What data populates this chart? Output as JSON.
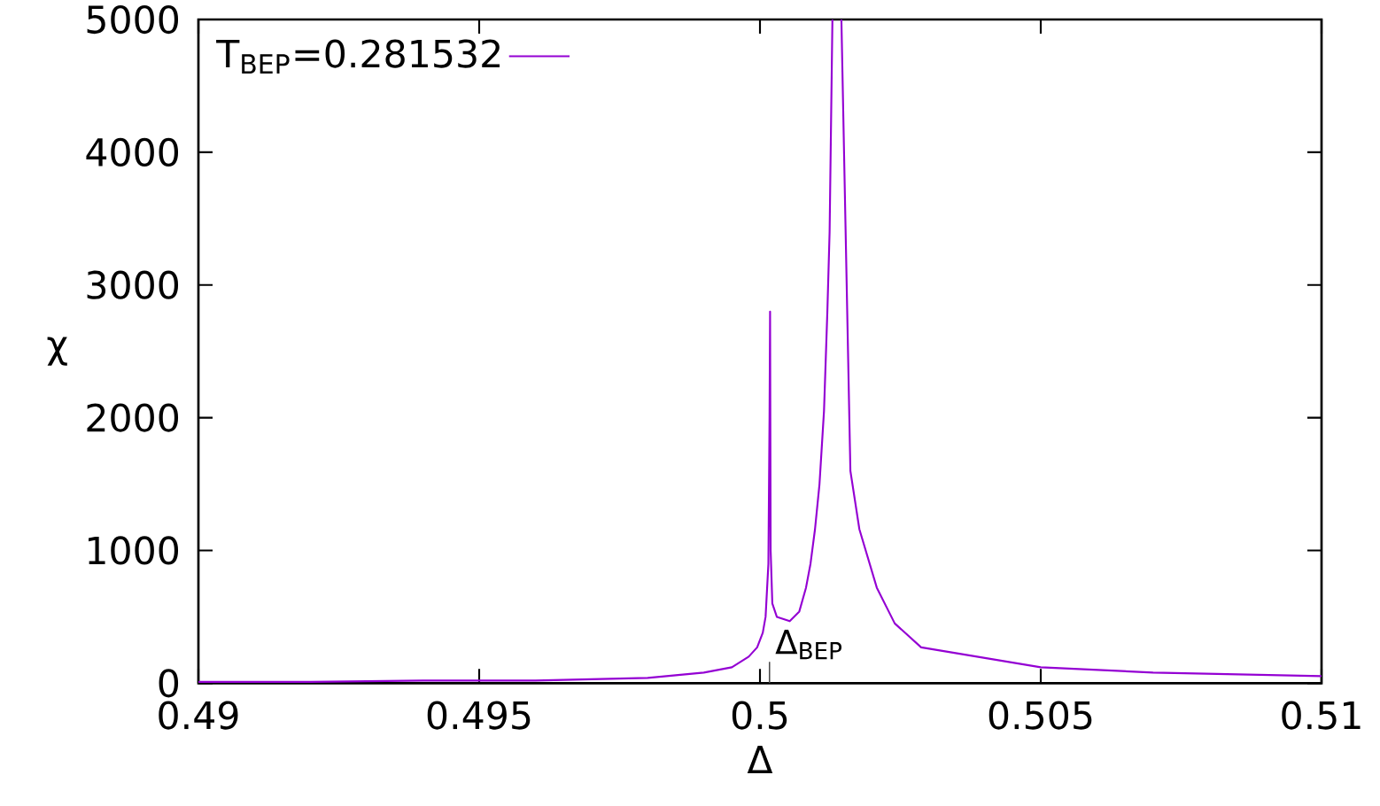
{
  "chart_data": {
    "type": "line",
    "xlabel": "Δ",
    "ylabel": "χ",
    "xlim": [
      0.49,
      0.51
    ],
    "ylim": [
      0,
      5000
    ],
    "xticks": [
      0.49,
      0.495,
      0.5,
      0.505,
      0.51
    ],
    "yticks": [
      0,
      1000,
      2000,
      3000,
      4000,
      5000
    ],
    "legend": "top left",
    "grid": false,
    "marker": "none",
    "line_style": "solid",
    "annotations": [
      "Δ$_{BEP}$"
    ],
    "series": [
      {
        "name": "T$_{BEP}$=0.281532",
        "color": "#9400d3",
        "x": [
          0.49,
          0.492,
          0.494,
          0.496,
          0.497,
          0.498,
          0.4985,
          0.499,
          0.4995,
          0.4998,
          0.49995,
          0.50005,
          0.5001,
          0.50015,
          0.50017,
          0.50018,
          0.50019,
          0.50022,
          0.5003,
          0.50053,
          0.5007,
          0.50082,
          0.5009,
          0.50098,
          0.50106,
          0.50114,
          0.5012,
          0.50124,
          0.50129,
          0.50137,
          0.50145,
          0.50161,
          0.50177,
          0.50208,
          0.5024,
          0.50287,
          0.505,
          0.507,
          0.51
        ],
        "values": [
          10,
          10,
          20,
          20,
          30,
          40,
          60,
          80,
          120,
          200,
          270,
          380,
          500,
          900,
          2000,
          2800,
          1000,
          600,
          500,
          467,
          540,
          720,
          900,
          1160,
          1500,
          2050,
          2800,
          3400,
          5000,
          null,
          5000,
          1600,
          1160,
          720,
          450,
          270,
          120,
          80,
          53
        ]
      }
    ]
  }
}
